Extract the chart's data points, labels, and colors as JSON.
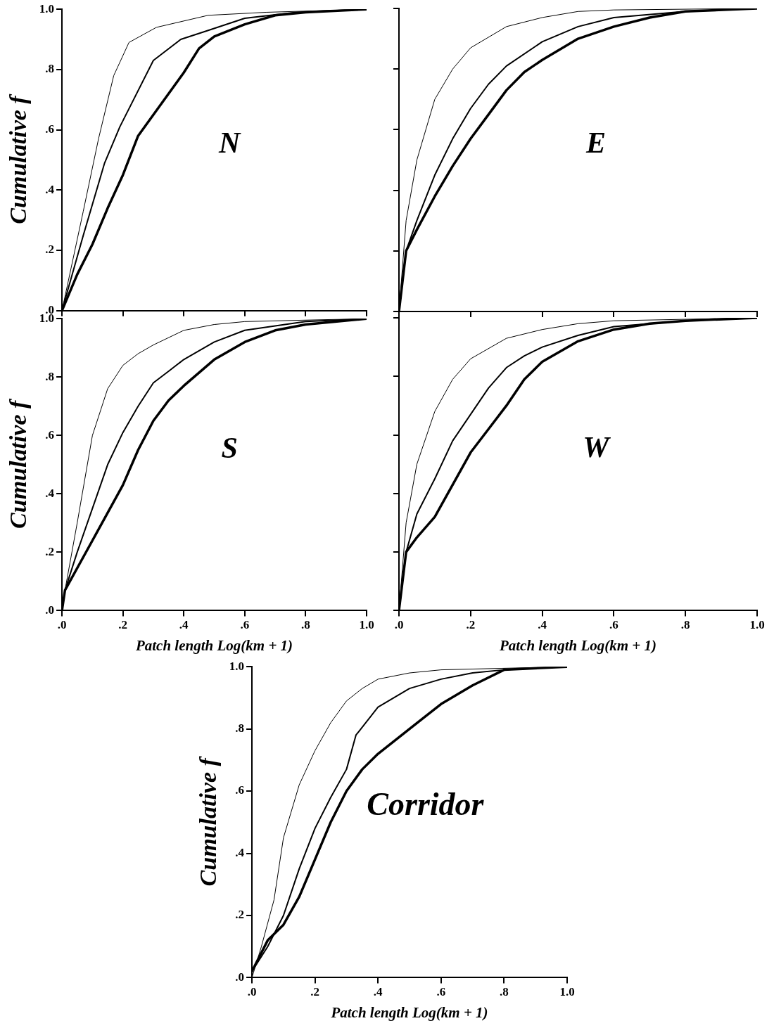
{
  "chart_data": [
    {
      "type": "line",
      "ylabel": "Cumulative f",
      "annotations": [
        "N"
      ],
      "tick_labels": "y",
      "xlim": [
        0,
        1
      ],
      "ylim": [
        0,
        1
      ],
      "xticks": [
        {
          "value": 0,
          "label": null
        },
        {
          "value": 0.2,
          "label": null
        },
        {
          "value": 0.4,
          "label": null
        },
        {
          "value": 0.6,
          "label": null
        },
        {
          "value": 0.8,
          "label": null
        },
        {
          "value": 1,
          "label": null
        }
      ],
      "yticks": [
        {
          "value": 0,
          "label": ".0"
        },
        {
          "value": 0.2,
          "label": ".2"
        },
        {
          "value": 0.4,
          "label": ".4"
        },
        {
          "value": 0.6,
          "label": ".6"
        },
        {
          "value": 0.8,
          "label": ".8"
        },
        {
          "value": 1,
          "label": "1.0"
        }
      ],
      "series": [
        {
          "color": "#000000",
          "x": [
            0,
            0.07,
            0.12,
            0.17,
            0.22,
            0.31,
            0.48,
            0.67,
            1
          ],
          "values": [
            0,
            0.33,
            0.57,
            0.78,
            0.89,
            0.94,
            0.98,
            0.99,
            1
          ]
        },
        {
          "color": "#000000",
          "x": [
            0,
            0.07,
            0.14,
            0.19,
            0.3,
            0.39,
            0.48,
            0.6,
            0.77,
            1
          ],
          "values": [
            0,
            0.25,
            0.49,
            0.61,
            0.83,
            0.9,
            0.93,
            0.97,
            0.99,
            1
          ]
        },
        {
          "color": "#000000",
          "x": [
            0,
            0.05,
            0.1,
            0.15,
            0.2,
            0.25,
            0.3,
            0.35,
            0.4,
            0.45,
            0.5,
            0.6,
            0.7,
            0.8,
            1
          ],
          "values": [
            0,
            0.12,
            0.22,
            0.34,
            0.45,
            0.58,
            0.65,
            0.72,
            0.79,
            0.87,
            0.91,
            0.95,
            0.98,
            0.99,
            1
          ]
        }
      ]
    },
    {
      "type": "line",
      "annotations": [
        "E"
      ],
      "tick_labels": false,
      "xlim": [
        0,
        1
      ],
      "ylim": [
        0,
        1
      ],
      "xticks": [
        {
          "value": 0,
          "label": null
        },
        {
          "value": 0.2,
          "label": null
        },
        {
          "value": 0.4,
          "label": null
        },
        {
          "value": 0.6,
          "label": null
        },
        {
          "value": 0.8,
          "label": null
        },
        {
          "value": 1,
          "label": null
        }
      ],
      "yticks": [
        {
          "value": 0,
          "label": null
        },
        {
          "value": 0.2,
          "label": null
        },
        {
          "value": 0.4,
          "label": null
        },
        {
          "value": 0.6,
          "label": null
        },
        {
          "value": 0.8,
          "label": null
        },
        {
          "value": 1,
          "label": null
        }
      ],
      "series": [
        {
          "color": "#000000",
          "x": [
            0,
            0.02,
            0.05,
            0.1,
            0.15,
            0.2,
            0.3,
            0.4,
            0.5,
            0.6,
            1
          ],
          "values": [
            0,
            0.3,
            0.5,
            0.7,
            0.8,
            0.87,
            0.94,
            0.97,
            0.99,
            0.995,
            1
          ]
        },
        {
          "color": "#000000",
          "x": [
            0,
            0.02,
            0.05,
            0.1,
            0.15,
            0.2,
            0.25,
            0.3,
            0.4,
            0.5,
            0.6,
            0.8,
            1
          ],
          "values": [
            0,
            0.2,
            0.3,
            0.45,
            0.57,
            0.67,
            0.75,
            0.81,
            0.89,
            0.94,
            0.97,
            0.99,
            1
          ]
        },
        {
          "color": "#000000",
          "x": [
            0,
            0.02,
            0.05,
            0.1,
            0.15,
            0.2,
            0.25,
            0.3,
            0.35,
            0.4,
            0.5,
            0.6,
            0.7,
            0.8,
            1
          ],
          "values": [
            0,
            0.2,
            0.27,
            0.38,
            0.48,
            0.57,
            0.65,
            0.73,
            0.79,
            0.83,
            0.9,
            0.94,
            0.97,
            0.99,
            1
          ]
        }
      ]
    },
    {
      "type": "line",
      "ylabel": "Cumulative f",
      "xlabel": "Patch length Log(km + 1)",
      "annotations": [
        "S"
      ],
      "xlim": [
        0,
        1
      ],
      "ylim": [
        0,
        1
      ],
      "xticks": [
        {
          "value": 0,
          "label": ".0"
        },
        {
          "value": 0.2,
          "label": ".2"
        },
        {
          "value": 0.4,
          "label": ".4"
        },
        {
          "value": 0.6,
          "label": ".6"
        },
        {
          "value": 0.8,
          "label": ".8"
        },
        {
          "value": 1,
          "label": "1.0"
        }
      ],
      "yticks": [
        {
          "value": 0,
          "label": ".0"
        },
        {
          "value": 0.2,
          "label": ".2"
        },
        {
          "value": 0.4,
          "label": ".4"
        },
        {
          "value": 0.6,
          "label": ".6"
        },
        {
          "value": 0.8,
          "label": ".8"
        },
        {
          "value": 1,
          "label": "1.0"
        }
      ],
      "series": [
        {
          "color": "#000000",
          "x": [
            0,
            0.01,
            0.05,
            0.1,
            0.15,
            0.2,
            0.25,
            0.3,
            0.4,
            0.5,
            0.6,
            1
          ],
          "values": [
            0,
            0.07,
            0.3,
            0.6,
            0.76,
            0.84,
            0.88,
            0.91,
            0.96,
            0.98,
            0.99,
            1
          ]
        },
        {
          "color": "#000000",
          "x": [
            0,
            0.01,
            0.05,
            0.1,
            0.15,
            0.2,
            0.25,
            0.3,
            0.35,
            0.4,
            0.5,
            0.6,
            0.8,
            1
          ],
          "values": [
            0,
            0.07,
            0.2,
            0.35,
            0.5,
            0.61,
            0.7,
            0.78,
            0.82,
            0.86,
            0.92,
            0.96,
            0.99,
            1
          ]
        },
        {
          "color": "#000000",
          "x": [
            0,
            0.01,
            0.1,
            0.2,
            0.25,
            0.3,
            0.35,
            0.4,
            0.5,
            0.6,
            0.7,
            0.8,
            1
          ],
          "values": [
            0,
            0.07,
            0.24,
            0.43,
            0.55,
            0.65,
            0.72,
            0.77,
            0.86,
            0.92,
            0.96,
            0.98,
            1
          ]
        }
      ]
    },
    {
      "type": "line",
      "xlabel": "Patch length Log(km + 1)",
      "annotations": [
        "W"
      ],
      "tick_labels": "x",
      "xlim": [
        0,
        1
      ],
      "ylim": [
        0,
        1
      ],
      "xticks": [
        {
          "value": 0,
          "label": ".0"
        },
        {
          "value": 0.2,
          "label": ".2"
        },
        {
          "value": 0.4,
          "label": ".4"
        },
        {
          "value": 0.6,
          "label": ".6"
        },
        {
          "value": 0.8,
          "label": ".8"
        },
        {
          "value": 1,
          "label": "1.0"
        }
      ],
      "yticks": [
        {
          "value": 0,
          "label": null
        },
        {
          "value": 0.2,
          "label": null
        },
        {
          "value": 0.4,
          "label": null
        },
        {
          "value": 0.6,
          "label": null
        },
        {
          "value": 0.8,
          "label": null
        },
        {
          "value": 1,
          "label": null
        }
      ],
      "series": [
        {
          "color": "#000000",
          "x": [
            0,
            0.02,
            0.05,
            0.1,
            0.15,
            0.2,
            0.3,
            0.4,
            0.5,
            0.6,
            1
          ],
          "values": [
            0,
            0.3,
            0.5,
            0.68,
            0.79,
            0.86,
            0.93,
            0.96,
            0.98,
            0.99,
            1
          ]
        },
        {
          "color": "#000000",
          "x": [
            0,
            0.02,
            0.05,
            0.1,
            0.15,
            0.2,
            0.25,
            0.3,
            0.35,
            0.4,
            0.5,
            0.6,
            0.8,
            1
          ],
          "values": [
            0,
            0.2,
            0.33,
            0.45,
            0.58,
            0.67,
            0.76,
            0.83,
            0.87,
            0.9,
            0.94,
            0.97,
            0.99,
            1
          ]
        },
        {
          "color": "#000000",
          "x": [
            0,
            0.02,
            0.05,
            0.1,
            0.15,
            0.2,
            0.25,
            0.3,
            0.35,
            0.4,
            0.5,
            0.6,
            0.7,
            0.8,
            1
          ],
          "values": [
            0,
            0.2,
            0.25,
            0.32,
            0.43,
            0.54,
            0.62,
            0.7,
            0.79,
            0.85,
            0.92,
            0.96,
            0.98,
            0.99,
            1
          ]
        }
      ]
    },
    {
      "type": "line",
      "ylabel": "Cumulative f",
      "xlabel": "Patch length Log(km + 1)",
      "annotations": [
        "Corridor"
      ],
      "xlim": [
        0,
        1
      ],
      "ylim": [
        0,
        1
      ],
      "xticks": [
        {
          "value": 0,
          "label": ".0"
        },
        {
          "value": 0.2,
          "label": ".2"
        },
        {
          "value": 0.4,
          "label": ".4"
        },
        {
          "value": 0.6,
          "label": ".6"
        },
        {
          "value": 0.8,
          "label": ".8"
        },
        {
          "value": 1,
          "label": "1.0"
        }
      ],
      "yticks": [
        {
          "value": 0,
          "label": ".0"
        },
        {
          "value": 0.2,
          "label": ".2"
        },
        {
          "value": 0.4,
          "label": ".4"
        },
        {
          "value": 0.6,
          "label": ".6"
        },
        {
          "value": 0.8,
          "label": ".8"
        },
        {
          "value": 1,
          "label": "1.0"
        }
      ],
      "series": [
        {
          "color": "#000000",
          "x": [
            0,
            0.03,
            0.07,
            0.1,
            0.15,
            0.2,
            0.25,
            0.3,
            0.35,
            0.4,
            0.5,
            0.6,
            1
          ],
          "values": [
            0,
            0.1,
            0.25,
            0.45,
            0.62,
            0.73,
            0.82,
            0.89,
            0.93,
            0.96,
            0.98,
            0.99,
            1
          ]
        },
        {
          "color": "#000000",
          "x": [
            0,
            0.05,
            0.1,
            0.15,
            0.2,
            0.25,
            0.3,
            0.33,
            0.4,
            0.5,
            0.6,
            0.7,
            0.8,
            1
          ],
          "values": [
            0.02,
            0.1,
            0.2,
            0.35,
            0.48,
            0.58,
            0.67,
            0.78,
            0.87,
            0.93,
            0.96,
            0.98,
            0.99,
            1
          ]
        },
        {
          "color": "#000000",
          "x": [
            0,
            0.05,
            0.1,
            0.15,
            0.2,
            0.25,
            0.3,
            0.35,
            0.4,
            0.5,
            0.6,
            0.7,
            0.8,
            1
          ],
          "values": [
            0.02,
            0.12,
            0.17,
            0.26,
            0.38,
            0.5,
            0.6,
            0.67,
            0.72,
            0.8,
            0.88,
            0.94,
            0.99,
            1
          ]
        }
      ]
    }
  ]
}
